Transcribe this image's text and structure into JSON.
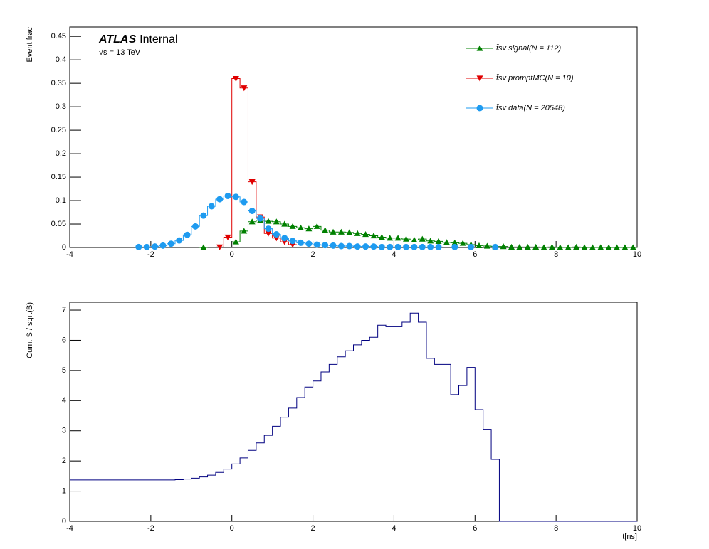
{
  "chart_data": [
    {
      "type": "histogram",
      "ylabel": "Event frac",
      "annotation": "ATLAS",
      "annotation_2": "Internal",
      "annotation_3": "√s = 13 TeV",
      "bins": [
        -4,
        -3.8,
        -3.6,
        -3.4,
        -3.2,
        -3,
        -2.8,
        -2.6,
        -2.4,
        -2.2,
        -2,
        -1.8,
        -1.6,
        -1.4,
        -1.2,
        -1,
        -0.8,
        -0.6,
        -0.4,
        -0.2,
        0,
        0.2,
        0.4,
        0.6,
        0.8,
        1,
        1.2,
        1.4,
        1.6,
        1.8,
        2,
        2.2,
        2.4,
        2.6,
        2.8,
        3,
        3.2,
        3.4,
        3.6,
        3.8,
        4,
        4.2,
        4.4,
        4.6,
        4.8,
        5,
        5.2,
        5.4,
        5.6,
        5.8,
        6,
        6.2,
        6.4,
        6.6,
        6.8,
        7,
        7.2,
        7.4,
        7.6,
        7.8,
        8,
        8.2,
        8.4,
        8.6,
        8.8,
        9,
        9.2,
        9.4,
        9.6,
        9.8,
        10
      ],
      "xlim": [
        -4,
        10
      ],
      "xticks": [
        -4,
        -2,
        0,
        2,
        4,
        6,
        8,
        10
      ],
      "ylim": [
        0,
        0.47
      ],
      "yticks": [
        0,
        0.05,
        0.1,
        0.15,
        0.2,
        0.25,
        0.3,
        0.35,
        0.4,
        0.45
      ],
      "series": [
        {
          "name": "t̄sv signal(N = 112)",
          "color": "#008000",
          "marker": "triangle-up",
          "values": [
            null,
            null,
            null,
            null,
            null,
            null,
            null,
            null,
            null,
            null,
            null,
            null,
            null,
            null,
            null,
            null,
            0,
            null,
            null,
            null,
            0.012,
            0.035,
            0.055,
            0.058,
            0.056,
            0.055,
            0.05,
            0.045,
            0.042,
            0.04,
            0.045,
            0.037,
            0.033,
            0.033,
            0.032,
            0.03,
            0.028,
            0.025,
            0.022,
            0.02,
            0.02,
            0.018,
            0.016,
            0.018,
            0.014,
            0.013,
            0.011,
            0.01,
            0.009,
            0.006,
            0.004,
            0.003,
            0.002,
            0.002,
            0.001,
            0.001,
            0.001,
            0.001,
            0,
            0.001,
            0,
            0,
            0.001,
            0,
            0,
            0,
            0,
            0,
            0,
            0
          ]
        },
        {
          "name": "t̄sv promptMC(N = 10)",
          "color": "#e00000",
          "marker": "triangle-down",
          "values": [
            null,
            null,
            null,
            null,
            null,
            null,
            null,
            null,
            null,
            null,
            null,
            null,
            null,
            null,
            null,
            null,
            null,
            null,
            0.001,
            0.022,
            0.36,
            0.34,
            0.14,
            0.065,
            0.03,
            0.02,
            0.012,
            0.006,
            null,
            null,
            null,
            null,
            null,
            null,
            null,
            null,
            null,
            null,
            null,
            null,
            null,
            null,
            null,
            null,
            null,
            null,
            null,
            null,
            null,
            null,
            null,
            null,
            null,
            null,
            null,
            null,
            null,
            null,
            null,
            null,
            null,
            null,
            null,
            null,
            null,
            null,
            null,
            null,
            null,
            null
          ]
        },
        {
          "name": "t̄sv data(N = 20548)",
          "color": "#1e9bf0",
          "marker": "circle",
          "values": [
            null,
            null,
            null,
            null,
            null,
            null,
            null,
            null,
            0.001,
            0.001,
            0.002,
            0.004,
            0.008,
            0.015,
            0.027,
            0.045,
            0.068,
            0.088,
            0.103,
            0.11,
            0.108,
            0.097,
            0.078,
            0.062,
            0.04,
            0.028,
            0.02,
            0.014,
            0.01,
            0.008,
            0.006,
            0.005,
            0.004,
            0.003,
            0.003,
            0.002,
            0.002,
            0.002,
            0.001,
            0.001,
            0.001,
            0.001,
            0.001,
            0.001,
            0.001,
            0.001,
            null,
            0.001,
            null,
            0.001,
            null,
            null,
            0.001,
            null,
            null,
            null,
            null,
            null,
            null,
            null,
            null,
            null,
            null,
            null,
            null,
            null,
            null,
            null,
            null,
            null
          ]
        }
      ]
    },
    {
      "type": "histogram",
      "ylabel": "Cum. S / sqrt(B)",
      "xlabel": "t[ns]",
      "bins": [
        -4,
        -3.8,
        -3.6,
        -3.4,
        -3.2,
        -3,
        -2.8,
        -2.6,
        -2.4,
        -2.2,
        -2,
        -1.8,
        -1.6,
        -1.4,
        -1.2,
        -1,
        -0.8,
        -0.6,
        -0.4,
        -0.2,
        0,
        0.2,
        0.4,
        0.6,
        0.8,
        1,
        1.2,
        1.4,
        1.6,
        1.8,
        2,
        2.2,
        2.4,
        2.6,
        2.8,
        3,
        3.2,
        3.4,
        3.6,
        3.8,
        4,
        4.2,
        4.4,
        4.6,
        4.8,
        5,
        5.2,
        5.4,
        5.6,
        5.8,
        6,
        6.2,
        6.4,
        6.6,
        6.8,
        7,
        7.2,
        7.4,
        7.6,
        7.8,
        8,
        8.2,
        8.4,
        8.6,
        8.8,
        9,
        9.2,
        9.4,
        9.6,
        9.8,
        10
      ],
      "xlim": [
        -4,
        10
      ],
      "xticks": [
        -4,
        -2,
        0,
        2,
        4,
        6,
        8,
        10
      ],
      "ylim": [
        0,
        7.26
      ],
      "yticks": [
        0,
        1,
        2,
        3,
        4,
        5,
        6,
        7
      ],
      "color": "#000080",
      "values": [
        1.37,
        1.37,
        1.37,
        1.37,
        1.37,
        1.37,
        1.37,
        1.37,
        1.37,
        1.37,
        1.37,
        1.37,
        1.37,
        1.38,
        1.4,
        1.43,
        1.47,
        1.53,
        1.62,
        1.73,
        1.9,
        2.1,
        2.35,
        2.6,
        2.85,
        3.15,
        3.45,
        3.75,
        4.1,
        4.45,
        4.65,
        4.95,
        5.2,
        5.45,
        5.65,
        5.85,
        6,
        6.1,
        6.5,
        6.45,
        6.45,
        6.6,
        6.9,
        6.6,
        5.4,
        5.2,
        5.2,
        4.2,
        4.5,
        5.1,
        3.7,
        3.05,
        2.05,
        0,
        0,
        0,
        0,
        0,
        0,
        0,
        0,
        0,
        0,
        0,
        0,
        0,
        0,
        0,
        0,
        0
      ]
    }
  ]
}
